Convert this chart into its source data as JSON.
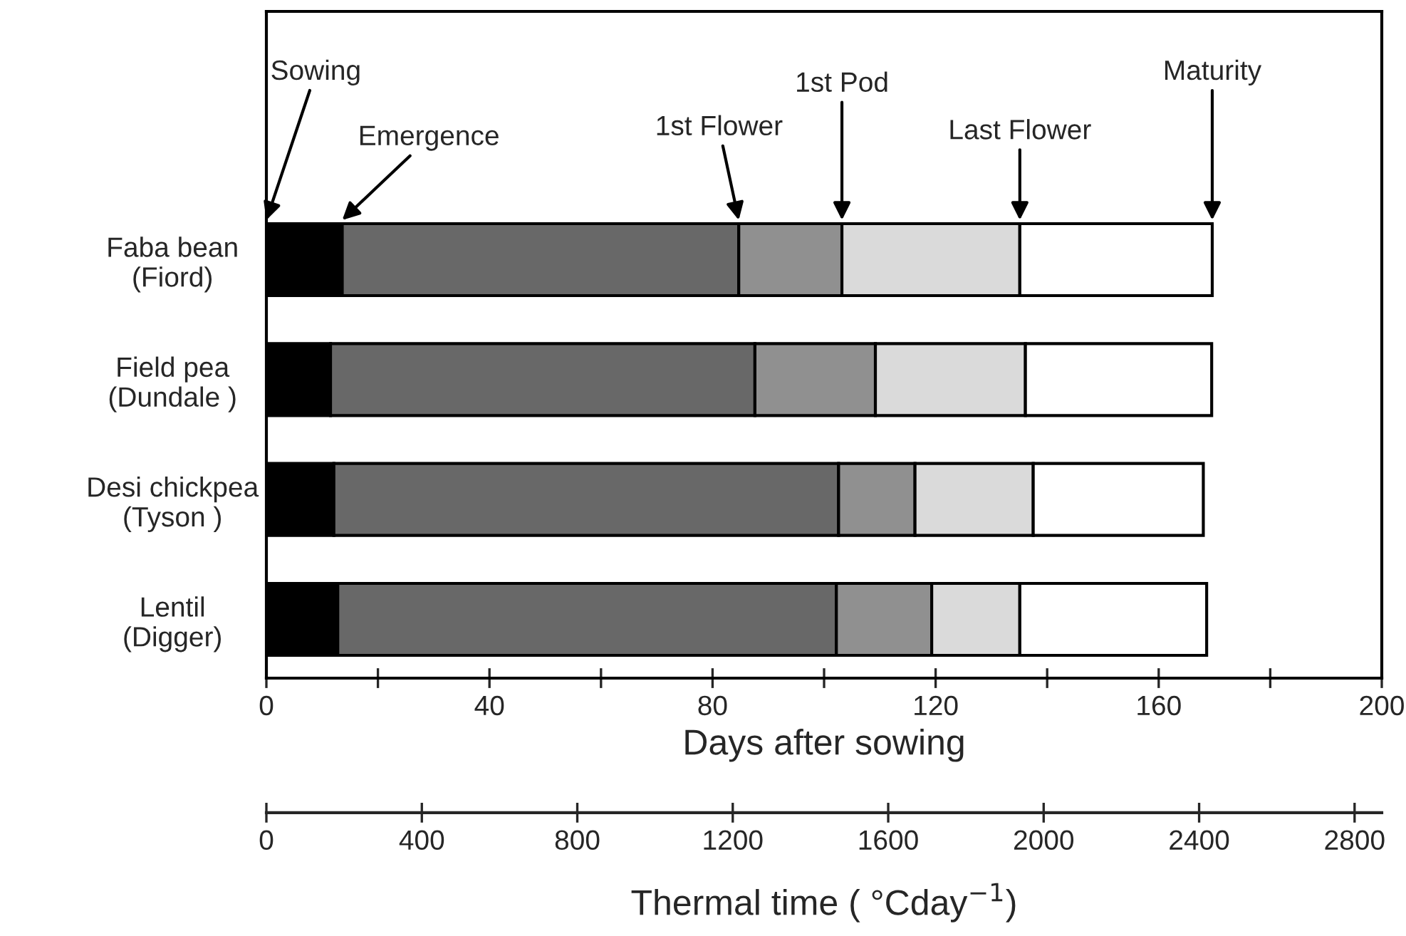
{
  "chart_data": {
    "type": "bar",
    "orientation": "horizontal",
    "stacked": true,
    "categories": [
      "Faba bean\n(Fiord)",
      "Field pea\n(Dundale )",
      "Desi chickpea\n(Tyson )",
      "Lentil\n(Digger)"
    ],
    "series": [
      {
        "color": "#000000",
        "values": [
          13.6,
          11.5,
          12.1,
          12.8
        ]
      },
      {
        "color": "#686868",
        "values": [
          71.1,
          76.1,
          90.5,
          89.4
        ]
      },
      {
        "color": "#909090",
        "values": [
          18.5,
          21.6,
          13.7,
          17.1
        ]
      },
      {
        "color": "#dadada",
        "values": [
          31.9,
          26.9,
          21.2,
          15.8
        ]
      },
      {
        "color": "#ffffff",
        "values": [
          34.5,
          33.4,
          30.5,
          33.5
        ]
      }
    ],
    "xlabel": "Days after sowing",
    "xlim": [
      0,
      200
    ],
    "xticks": [
      0,
      {
        "value": 20,
        "label": null
      },
      40,
      {
        "value": 60,
        "label": null
      },
      80,
      {
        "value": 100,
        "label": null
      },
      120,
      {
        "value": 140,
        "label": null
      },
      160,
      {
        "value": 180,
        "label": null
      },
      200
    ],
    "x2label": "Thermal time ( °Cday$^{−1}$)",
    "x2lim": [
      0,
      2870
    ],
    "x2ticks": [
      0,
      400,
      800,
      1200,
      1600,
      2000,
      2400,
      2800
    ],
    "annotations": [
      "Sowing",
      "Emergence",
      "1st Flower",
      "1st Pod",
      "Last Flower",
      "Maturity"
    ],
    "grid": false,
    "legend": false
  }
}
